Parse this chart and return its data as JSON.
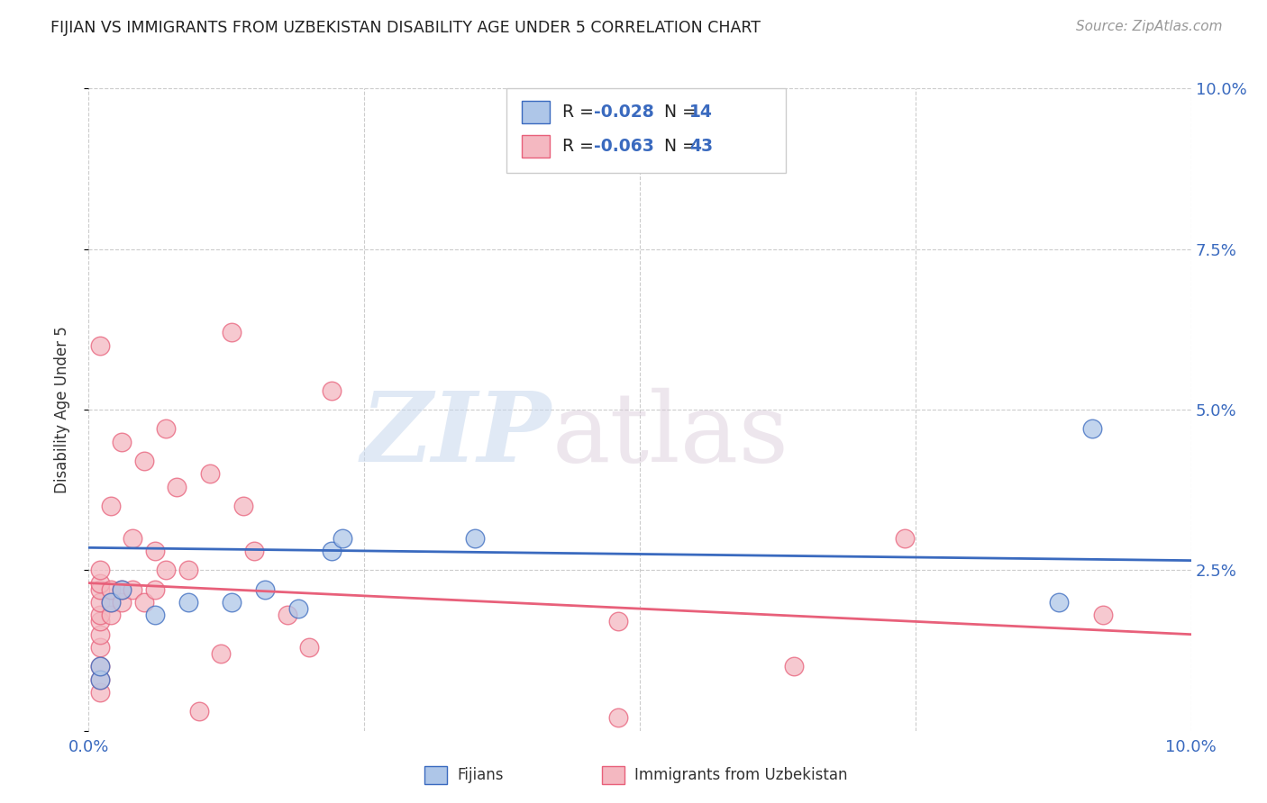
{
  "title": "FIJIAN VS IMMIGRANTS FROM UZBEKISTAN DISABILITY AGE UNDER 5 CORRELATION CHART",
  "source": "Source: ZipAtlas.com",
  "ylabel": "Disability Age Under 5",
  "xlim": [
    0.0,
    0.1
  ],
  "ylim": [
    0.0,
    0.1
  ],
  "yticks": [
    0.0,
    0.025,
    0.05,
    0.075,
    0.1
  ],
  "ytick_labels": [
    "",
    "2.5%",
    "5.0%",
    "7.5%",
    "10.0%"
  ],
  "xticks": [
    0.0,
    0.025,
    0.05,
    0.075,
    0.1
  ],
  "xtick_labels": [
    "0.0%",
    "",
    "",
    "",
    "10.0%"
  ],
  "fijian_color": "#aec6e8",
  "uzbek_color": "#f4b8c1",
  "fijian_line_color": "#3a6abf",
  "uzbek_line_color": "#e8607a",
  "background_color": "#ffffff",
  "grid_color": "#cccccc",
  "fijian_x": [
    0.001,
    0.001,
    0.002,
    0.003,
    0.006,
    0.009,
    0.013,
    0.016,
    0.019,
    0.022,
    0.023,
    0.035,
    0.088,
    0.091
  ],
  "fijian_y": [
    0.008,
    0.01,
    0.02,
    0.022,
    0.018,
    0.02,
    0.02,
    0.022,
    0.019,
    0.028,
    0.03,
    0.03,
    0.02,
    0.047
  ],
  "uzbek_x": [
    0.001,
    0.001,
    0.001,
    0.001,
    0.001,
    0.001,
    0.001,
    0.001,
    0.001,
    0.001,
    0.001,
    0.001,
    0.002,
    0.002,
    0.002,
    0.002,
    0.003,
    0.003,
    0.003,
    0.004,
    0.004,
    0.005,
    0.005,
    0.006,
    0.006,
    0.007,
    0.007,
    0.008,
    0.009,
    0.01,
    0.011,
    0.012,
    0.013,
    0.014,
    0.015,
    0.018,
    0.02,
    0.022,
    0.048,
    0.048,
    0.064,
    0.074,
    0.092
  ],
  "uzbek_y": [
    0.006,
    0.008,
    0.01,
    0.013,
    0.015,
    0.017,
    0.018,
    0.02,
    0.022,
    0.023,
    0.025,
    0.06,
    0.018,
    0.02,
    0.022,
    0.035,
    0.02,
    0.022,
    0.045,
    0.022,
    0.03,
    0.02,
    0.042,
    0.022,
    0.028,
    0.025,
    0.047,
    0.038,
    0.025,
    0.003,
    0.04,
    0.012,
    0.062,
    0.035,
    0.028,
    0.018,
    0.013,
    0.053,
    0.002,
    0.017,
    0.01,
    0.03,
    0.018
  ],
  "fijian_trend_x": [
    0.0,
    0.1
  ],
  "fijian_trend_y": [
    0.0285,
    0.0265
  ],
  "uzbek_trend_x": [
    0.0,
    0.1
  ],
  "uzbek_trend_y": [
    0.023,
    0.015
  ]
}
